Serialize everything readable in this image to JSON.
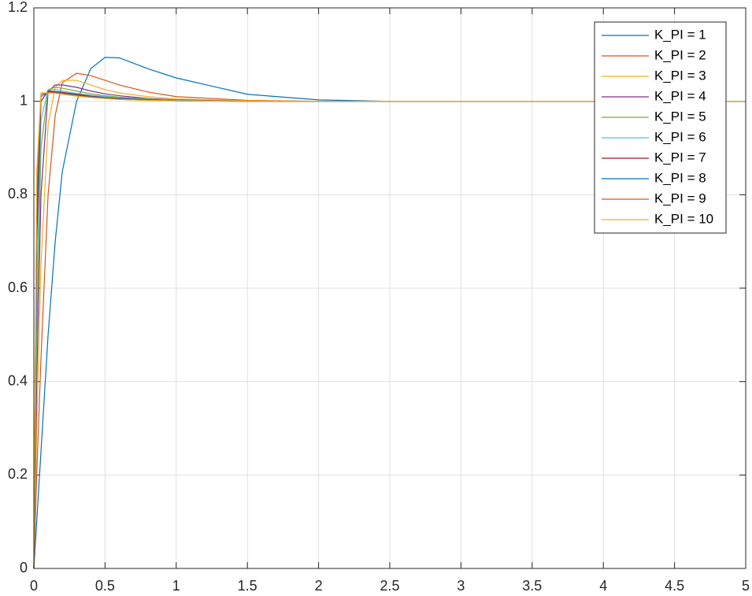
{
  "chart_data": {
    "type": "line",
    "x": [
      0,
      0.02,
      0.05,
      0.1,
      0.15,
      0.2,
      0.3,
      0.4,
      0.5,
      0.6,
      0.8,
      1.0,
      1.5,
      2.0,
      2.5,
      3,
      4,
      5
    ],
    "series": [
      {
        "name": "K_PI = 1",
        "color": "#0072bd",
        "values": [
          0,
          0.1,
          0.25,
          0.5,
          0.7,
          0.85,
          1.0,
          1.07,
          1.094,
          1.093,
          1.07,
          1.05,
          1.015,
          1.003,
          1,
          1,
          1,
          1
        ]
      },
      {
        "name": "K_PI = 2",
        "color": "#d95319",
        "values": [
          0,
          0.2,
          0.45,
          0.8,
          0.97,
          1.04,
          1.06,
          1.055,
          1.045,
          1.035,
          1.02,
          1.01,
          1.002,
          1,
          1,
          1,
          1,
          1
        ]
      },
      {
        "name": "K_PI = 3",
        "color": "#edb120",
        "values": [
          0,
          0.3,
          0.65,
          0.95,
          1.03,
          1.045,
          1.045,
          1.035,
          1.025,
          1.018,
          1.01,
          1.005,
          1.001,
          1,
          1,
          1,
          1,
          1
        ]
      },
      {
        "name": "K_PI = 4",
        "color": "#7e2f8e",
        "values": [
          0,
          0.4,
          0.8,
          1.02,
          1.035,
          1.035,
          1.03,
          1.022,
          1.016,
          1.012,
          1.006,
          1.003,
          1,
          1,
          1,
          1,
          1,
          1
        ]
      },
      {
        "name": "K_PI = 5",
        "color": "#77ac30",
        "values": [
          0,
          0.5,
          0.9,
          1.025,
          1.03,
          1.028,
          1.022,
          1.016,
          1.012,
          1.009,
          1.005,
          1.002,
          1,
          1,
          1,
          1,
          1,
          1
        ]
      },
      {
        "name": "K_PI = 6",
        "color": "#4dbeee",
        "values": [
          0,
          0.6,
          0.96,
          1.025,
          1.025,
          1.022,
          1.017,
          1.013,
          1.01,
          1.007,
          1.004,
          1.002,
          1,
          1,
          1,
          1,
          1,
          1
        ]
      },
      {
        "name": "K_PI = 7",
        "color": "#a2142f",
        "values": [
          0,
          0.7,
          1.0,
          1.022,
          1.021,
          1.019,
          1.015,
          1.011,
          1.008,
          1.006,
          1.003,
          1.001,
          1,
          1,
          1,
          1,
          1,
          1
        ]
      },
      {
        "name": "K_PI = 8",
        "color": "#0072bd",
        "values": [
          0,
          0.75,
          1.01,
          1.02,
          1.019,
          1.017,
          1.013,
          1.01,
          1.007,
          1.005,
          1.003,
          1.001,
          1,
          1,
          1,
          1,
          1,
          1
        ]
      },
      {
        "name": "K_PI = 9",
        "color": "#d95319",
        "values": [
          0,
          0.8,
          1.015,
          1.019,
          1.018,
          1.016,
          1.012,
          1.009,
          1.006,
          1.004,
          1.002,
          1.001,
          1,
          1,
          1,
          1,
          1,
          1
        ]
      },
      {
        "name": "K_PI = 10",
        "color": "#edb120",
        "values": [
          0,
          0.85,
          1.018,
          1.018,
          1.017,
          1.015,
          1.011,
          1.008,
          1.006,
          1.004,
          1.002,
          1.001,
          1,
          1,
          1,
          1,
          1,
          1
        ]
      }
    ],
    "xlim": [
      0,
      5
    ],
    "xticks": [
      0,
      0.5,
      1,
      1.5,
      2,
      2.5,
      3,
      3.5,
      4,
      4.5,
      5
    ],
    "ylim": [
      0,
      1.2
    ],
    "yticks": [
      0,
      0.2,
      0.4,
      0.6,
      0.8,
      1,
      1.2
    ],
    "grid": true,
    "legend": "northeast"
  }
}
